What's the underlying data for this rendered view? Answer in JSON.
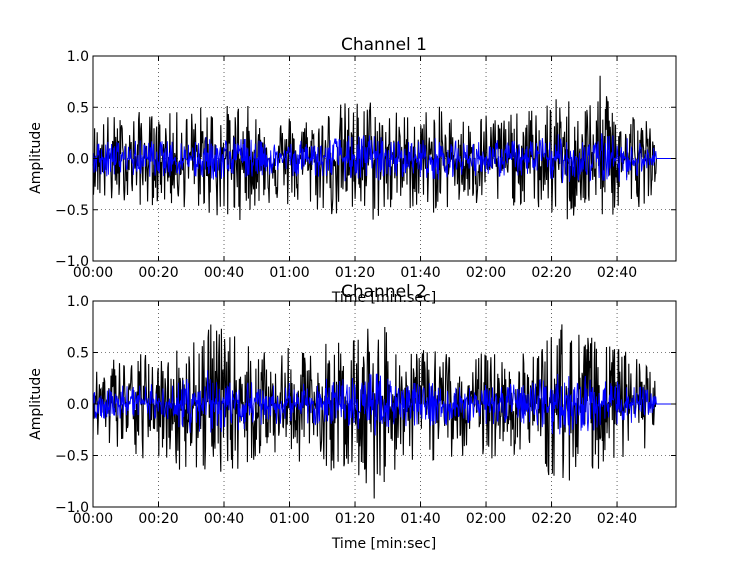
{
  "chart_data": [
    {
      "type": "line",
      "title": "Channel 1",
      "xlabel": "Time [min:sec]",
      "ylabel": "Amplitude",
      "xlim": [
        0,
        178
      ],
      "ylim": [
        -1.0,
        1.0
      ],
      "xticks": [
        0,
        20,
        40,
        60,
        80,
        100,
        120,
        140,
        160
      ],
      "xtick_labels": [
        "00:00",
        "00:20",
        "00:40",
        "01:00",
        "01:20",
        "01:40",
        "02:00",
        "02:20",
        "02:40"
      ],
      "yticks": [
        -1.0,
        -0.5,
        0.0,
        0.5,
        1.0
      ],
      "ytick_labels": [
        "−1.0",
        "−0.5",
        "0.0",
        "0.5",
        "1.0"
      ],
      "grid": true,
      "signal_end": 172,
      "series": [
        {
          "color": "#000000",
          "x": [
            0,
            5,
            10,
            15,
            20,
            25,
            30,
            35,
            40,
            45,
            50,
            55,
            60,
            65,
            70,
            75,
            80,
            85,
            90,
            95,
            100,
            105,
            110,
            115,
            120,
            125,
            130,
            135,
            140,
            145,
            150,
            155,
            160,
            165,
            170,
            172
          ],
          "upper": [
            0.35,
            0.45,
            0.4,
            0.48,
            0.42,
            0.46,
            0.5,
            0.55,
            0.52,
            0.58,
            0.45,
            0.4,
            0.45,
            0.42,
            0.48,
            0.55,
            0.58,
            0.62,
            0.5,
            0.46,
            0.48,
            0.52,
            0.45,
            0.4,
            0.48,
            0.46,
            0.44,
            0.52,
            0.58,
            0.62,
            0.55,
            0.82,
            0.58,
            0.5,
            0.38,
            0.2
          ],
          "lower": [
            -0.35,
            -0.52,
            -0.4,
            -0.48,
            -0.45,
            -0.5,
            -0.48,
            -0.55,
            -0.68,
            -0.6,
            -0.48,
            -0.45,
            -0.5,
            -0.48,
            -0.55,
            -0.6,
            -0.62,
            -0.64,
            -0.58,
            -0.5,
            -0.52,
            -0.55,
            -0.48,
            -0.5,
            -0.52,
            -0.48,
            -0.46,
            -0.52,
            -0.58,
            -0.65,
            -0.55,
            -0.6,
            -0.58,
            -0.52,
            -0.4,
            -0.2
          ]
        },
        {
          "color": "#0000ff",
          "x": [
            0,
            5,
            10,
            15,
            20,
            25,
            30,
            35,
            40,
            45,
            50,
            55,
            60,
            65,
            70,
            75,
            80,
            85,
            90,
            95,
            100,
            105,
            110,
            115,
            120,
            125,
            130,
            135,
            140,
            145,
            150,
            155,
            160,
            165,
            170,
            172
          ],
          "upper": [
            0.14,
            0.18,
            0.16,
            0.19,
            0.17,
            0.18,
            0.2,
            0.22,
            0.21,
            0.23,
            0.18,
            0.16,
            0.18,
            0.17,
            0.19,
            0.22,
            0.23,
            0.25,
            0.2,
            0.18,
            0.19,
            0.21,
            0.18,
            0.16,
            0.19,
            0.18,
            0.18,
            0.21,
            0.23,
            0.25,
            0.22,
            0.26,
            0.23,
            0.2,
            0.15,
            0.08
          ],
          "lower": [
            -0.14,
            -0.18,
            -0.16,
            -0.19,
            -0.17,
            -0.18,
            -0.2,
            -0.22,
            -0.21,
            -0.23,
            -0.18,
            -0.16,
            -0.18,
            -0.17,
            -0.19,
            -0.22,
            -0.23,
            -0.25,
            -0.2,
            -0.18,
            -0.19,
            -0.21,
            -0.18,
            -0.16,
            -0.19,
            -0.18,
            -0.18,
            -0.21,
            -0.23,
            -0.25,
            -0.22,
            -0.26,
            -0.23,
            -0.2,
            -0.15,
            -0.08
          ]
        }
      ]
    },
    {
      "type": "line",
      "title": "Channel 2",
      "xlabel": "Time [min:sec]",
      "ylabel": "Amplitude",
      "xlim": [
        0,
        178
      ],
      "ylim": [
        -1.0,
        1.0
      ],
      "xticks": [
        0,
        20,
        40,
        60,
        80,
        100,
        120,
        140,
        160
      ],
      "xtick_labels": [
        "00:00",
        "00:20",
        "00:40",
        "01:00",
        "01:20",
        "01:40",
        "02:00",
        "02:20",
        "02:40"
      ],
      "yticks": [
        -1.0,
        -0.5,
        0.0,
        0.5,
        1.0
      ],
      "ytick_labels": [
        "−1.0",
        "−0.5",
        "0.0",
        "0.5",
        "1.0"
      ],
      "grid": true,
      "signal_end": 172,
      "series": [
        {
          "color": "#000000",
          "x": [
            0,
            5,
            10,
            15,
            20,
            25,
            30,
            35,
            40,
            45,
            50,
            55,
            60,
            65,
            70,
            75,
            80,
            85,
            90,
            95,
            100,
            105,
            110,
            115,
            120,
            125,
            130,
            135,
            140,
            145,
            150,
            155,
            160,
            165,
            170,
            172
          ],
          "upper": [
            0.35,
            0.48,
            0.45,
            0.5,
            0.48,
            0.55,
            0.72,
            0.92,
            0.7,
            0.68,
            0.52,
            0.48,
            0.55,
            0.5,
            0.6,
            0.65,
            0.7,
            0.88,
            0.72,
            0.55,
            0.52,
            0.55,
            0.5,
            0.48,
            0.52,
            0.5,
            0.48,
            0.55,
            0.72,
            0.86,
            0.7,
            0.6,
            0.55,
            0.5,
            0.38,
            0.2
          ],
          "lower": [
            -0.35,
            -0.55,
            -0.5,
            -0.58,
            -0.55,
            -0.62,
            -0.72,
            -0.7,
            -0.65,
            -0.68,
            -0.55,
            -0.5,
            -0.58,
            -0.55,
            -0.62,
            -0.68,
            -0.7,
            -0.98,
            -0.72,
            -0.58,
            -0.55,
            -0.58,
            -0.52,
            -0.5,
            -0.55,
            -0.52,
            -0.5,
            -0.58,
            -0.75,
            -0.8,
            -0.72,
            -0.62,
            -0.58,
            -0.52,
            -0.4,
            -0.2
          ]
        },
        {
          "color": "#0000ff",
          "x": [
            0,
            5,
            10,
            15,
            20,
            25,
            30,
            35,
            40,
            45,
            50,
            55,
            60,
            65,
            70,
            75,
            80,
            85,
            90,
            95,
            100,
            105,
            110,
            115,
            120,
            125,
            130,
            135,
            140,
            145,
            150,
            155,
            160,
            165,
            170,
            172
          ],
          "upper": [
            0.14,
            0.19,
            0.18,
            0.2,
            0.19,
            0.22,
            0.29,
            0.34,
            0.28,
            0.27,
            0.21,
            0.19,
            0.22,
            0.2,
            0.24,
            0.26,
            0.28,
            0.32,
            0.29,
            0.22,
            0.21,
            0.22,
            0.2,
            0.19,
            0.21,
            0.2,
            0.19,
            0.22,
            0.29,
            0.32,
            0.28,
            0.24,
            0.22,
            0.2,
            0.15,
            0.08
          ],
          "lower": [
            -0.14,
            -0.19,
            -0.18,
            -0.2,
            -0.19,
            -0.22,
            -0.29,
            -0.34,
            -0.28,
            -0.27,
            -0.21,
            -0.19,
            -0.22,
            -0.2,
            -0.24,
            -0.26,
            -0.28,
            -0.32,
            -0.29,
            -0.22,
            -0.21,
            -0.22,
            -0.2,
            -0.19,
            -0.21,
            -0.2,
            -0.19,
            -0.22,
            -0.29,
            -0.32,
            -0.28,
            -0.24,
            -0.22,
            -0.2,
            -0.15,
            -0.08
          ]
        }
      ]
    }
  ]
}
